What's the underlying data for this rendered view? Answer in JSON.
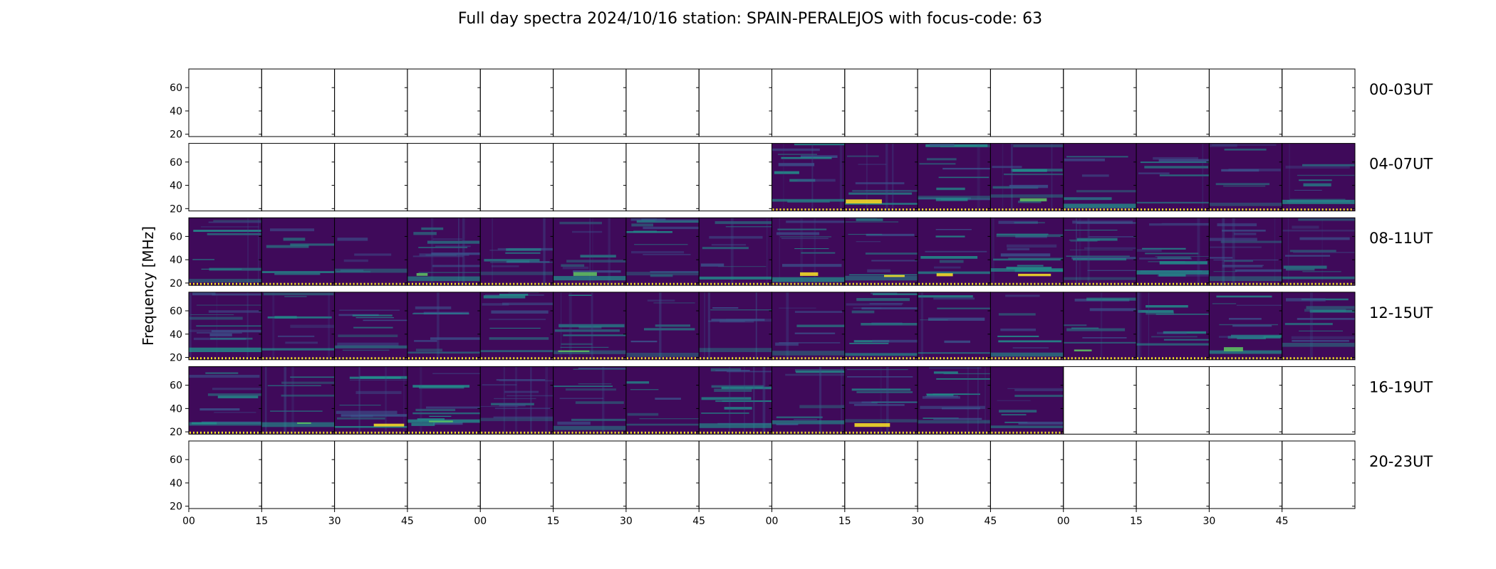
{
  "chart_data": {
    "type": "heatmap",
    "title": "Full day spectra 2024/10/16 station: SPAIN-PERALEJOS with focus-code: 63",
    "ylabel": "Frequency [MHz]",
    "ylim": [
      18,
      76
    ],
    "yticks": [
      20,
      40,
      60
    ],
    "xtick_labels": [
      "00",
      "15",
      "30",
      "45",
      "00",
      "15",
      "30",
      "45",
      "00",
      "15",
      "30",
      "45",
      "00",
      "15",
      "30",
      "45"
    ],
    "panels_per_row": 16,
    "minutes_per_panel": 15,
    "colormap": [
      "#440154",
      "#3b528b",
      "#21918c",
      "#5ec962",
      "#fde725"
    ],
    "background_color": "#3f0a5a",
    "rows": [
      {
        "label": "00-03UT",
        "data_panels": []
      },
      {
        "label": "04-07UT",
        "data_panels": [
          8,
          9,
          10,
          11,
          12,
          13,
          14,
          15
        ]
      },
      {
        "label": "08-11UT",
        "data_panels": [
          0,
          1,
          2,
          3,
          4,
          5,
          6,
          7,
          8,
          9,
          10,
          11,
          12,
          13,
          14,
          15
        ]
      },
      {
        "label": "12-15UT",
        "data_panels": [
          0,
          1,
          2,
          3,
          4,
          5,
          6,
          7,
          8,
          9,
          10,
          11,
          12,
          13,
          14,
          15
        ]
      },
      {
        "label": "16-19UT",
        "data_panels": [
          0,
          1,
          2,
          3,
          4,
          5,
          6,
          7,
          8,
          9,
          10,
          11
        ]
      },
      {
        "label": "20-23UT",
        "data_panels": []
      }
    ]
  }
}
